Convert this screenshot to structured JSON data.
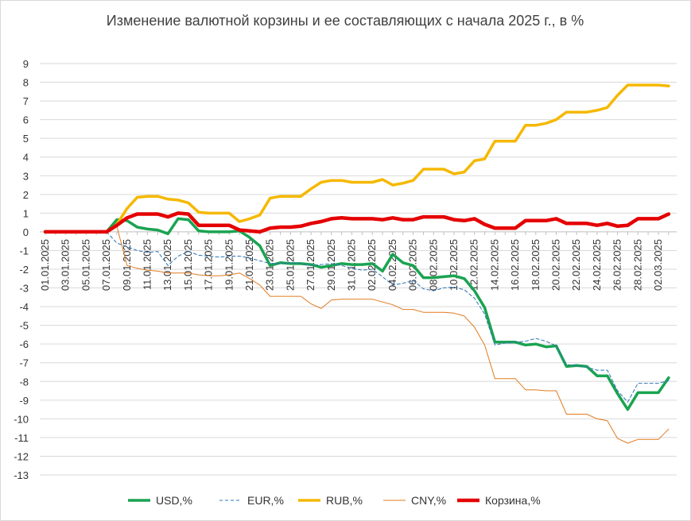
{
  "chart_data": {
    "type": "line",
    "title": "Изменение валютной корзины и ее составляющих с начала 2025 г., в %",
    "ylim": [
      -13,
      9
    ],
    "yticks": [
      9,
      8,
      7,
      6,
      5,
      4,
      3,
      2,
      1,
      0,
      -1,
      -2,
      -3,
      -4,
      -5,
      -6,
      -7,
      -8,
      -9,
      -10,
      -11,
      -12,
      -13
    ],
    "x_tick_labels": [
      "01.01.2025",
      "03.01.2025",
      "05.01.2025",
      "07.01.2025",
      "09.01.2025",
      "11.01.2025",
      "13.01.2025",
      "15.01.2025",
      "17.01.2025",
      "19.01.2025",
      "21.01.2025",
      "23.01.2025",
      "25.01.2025",
      "27.01.2025",
      "29.01.2025",
      "31.01.2025",
      "02.02.2025",
      "04.02.2025",
      "06.02.2025",
      "08.02.2025",
      "10.02.2025",
      "12.02.2025",
      "14.02.2025",
      "16.02.2025",
      "18.02.2025",
      "20.02.2025",
      "22.02.2025",
      "24.02.2025",
      "26.02.2025",
      "28.02.2025",
      "02.03.2025"
    ],
    "x": [
      "01.01.2025",
      "02.01.2025",
      "03.01.2025",
      "04.01.2025",
      "05.01.2025",
      "06.01.2025",
      "07.01.2025",
      "08.01.2025",
      "09.01.2025",
      "10.01.2025",
      "11.01.2025",
      "12.01.2025",
      "13.01.2025",
      "14.01.2025",
      "15.01.2025",
      "16.01.2025",
      "17.01.2025",
      "18.01.2025",
      "19.01.2025",
      "20.01.2025",
      "21.01.2025",
      "22.01.2025",
      "23.01.2025",
      "24.01.2025",
      "25.01.2025",
      "26.01.2025",
      "27.01.2025",
      "28.01.2025",
      "29.01.2025",
      "30.01.2025",
      "31.01.2025",
      "01.02.2025",
      "02.02.2025",
      "03.02.2025",
      "04.02.2025",
      "05.02.2025",
      "06.02.2025",
      "07.02.2025",
      "08.02.2025",
      "09.02.2025",
      "10.02.2025",
      "11.02.2025",
      "12.02.2025",
      "13.02.2025",
      "14.02.2025",
      "15.02.2025",
      "16.02.2025",
      "17.02.2025",
      "18.02.2025",
      "19.02.2025",
      "20.02.2025",
      "21.02.2025",
      "22.02.2025",
      "23.02.2025",
      "24.02.2025",
      "25.02.2025",
      "26.02.2025",
      "27.02.2025",
      "28.02.2025",
      "01.03.2025",
      "02.03.2025",
      "03.03.2025"
    ],
    "series": [
      {
        "name": "USD,%",
        "color": "#1aa351",
        "dash": false,
        "values": [
          0,
          0,
          0,
          0,
          0,
          0,
          0,
          0.65,
          0.6,
          0.25,
          0.15,
          0.1,
          -0.1,
          0.7,
          0.65,
          0.05,
          0,
          0,
          0,
          0.05,
          -0.3,
          -0.75,
          -1.8,
          -1.65,
          -1.7,
          -1.7,
          -1.75,
          -1.9,
          -1.8,
          -1.7,
          -1.75,
          -1.75,
          -1.7,
          -2.1,
          -1.2,
          -1.65,
          -1.8,
          -2.45,
          -2.45,
          -2.4,
          -2.35,
          -2.5,
          -3.15,
          -4.05,
          -5.9,
          -5.9,
          -5.9,
          -6.05,
          -6,
          -6.15,
          -6.1,
          -7.2,
          -7.15,
          -7.2,
          -7.7,
          -7.7,
          -8.65,
          -9.5,
          -8.6,
          -8.6,
          -8.6,
          -7.8
        ]
      },
      {
        "name": "EUR,%",
        "color": "#2e74b5",
        "dash": true,
        "values": [
          0,
          0,
          0,
          0,
          0,
          0,
          0,
          -0.6,
          -0.8,
          -1,
          -1.1,
          -1.05,
          -1.8,
          -1.3,
          -1.05,
          -1.25,
          -1.3,
          -1.35,
          -1.3,
          -1.3,
          -1.4,
          -1.55,
          -1.7,
          -1.7,
          -1.65,
          -1.7,
          -1.8,
          -1.75,
          -1.7,
          -1.8,
          -1.95,
          -2.05,
          -2,
          -2.4,
          -2.85,
          -2.75,
          -2.6,
          -3.05,
          -3.15,
          -3,
          -2.95,
          -3.1,
          -3.55,
          -4.4,
          -6.05,
          -5.95,
          -5.9,
          -5.85,
          -5.7,
          -5.85,
          -6.1,
          -7.1,
          -7.15,
          -7.25,
          -7.4,
          -7.4,
          -8.5,
          -9.1,
          -8.1,
          -8.1,
          -8.1,
          -7.95
        ]
      },
      {
        "name": "RUB,%",
        "color": "#f5b800",
        "dash": false,
        "values": [
          0,
          0,
          0,
          0,
          0,
          0,
          0,
          0.4,
          1.25,
          1.85,
          1.9,
          1.9,
          1.75,
          1.7,
          1.55,
          1.05,
          1,
          1,
          1,
          0.55,
          0.7,
          0.9,
          1.8,
          1.9,
          1.9,
          1.9,
          2.3,
          2.65,
          2.75,
          2.75,
          2.65,
          2.65,
          2.65,
          2.8,
          2.5,
          2.6,
          2.75,
          3.35,
          3.35,
          3.35,
          3.1,
          3.2,
          3.8,
          3.9,
          4.85,
          4.85,
          4.85,
          5.7,
          5.7,
          5.8,
          6,
          6.4,
          6.4,
          6.4,
          6.5,
          6.65,
          7.3,
          7.85,
          7.85,
          7.85,
          7.85,
          7.8
        ]
      },
      {
        "name": "CNY,%",
        "color": "#e07a1f",
        "dash": false,
        "values": [
          0,
          0,
          0,
          0,
          0,
          0,
          0,
          0.3,
          -1.8,
          -1.95,
          -2.05,
          -2.1,
          -2.2,
          -2.2,
          -2.2,
          -2.3,
          -2.35,
          -2.35,
          -2.3,
          -2.2,
          -2.5,
          -2.85,
          -3.45,
          -3.45,
          -3.45,
          -3.45,
          -3.85,
          -4.1,
          -3.65,
          -3.6,
          -3.6,
          -3.6,
          -3.6,
          -3.75,
          -3.9,
          -4.15,
          -4.15,
          -4.3,
          -4.3,
          -4.3,
          -4.35,
          -4.5,
          -5.1,
          -6.05,
          -7.85,
          -7.85,
          -7.85,
          -8.45,
          -8.45,
          -8.5,
          -8.5,
          -9.75,
          -9.75,
          -9.75,
          -10,
          -10.1,
          -11.05,
          -11.3,
          -11.1,
          -11.1,
          -11.1,
          -10.55
        ]
      },
      {
        "name": "Корзина,%",
        "color": "#e50000",
        "dash": false,
        "values": [
          0,
          0,
          0,
          0,
          0,
          0,
          0,
          0.35,
          0.75,
          0.95,
          0.95,
          0.95,
          0.8,
          1,
          0.95,
          0.35,
          0.35,
          0.35,
          0.35,
          0.1,
          0.05,
          0,
          0.2,
          0.25,
          0.25,
          0.3,
          0.45,
          0.55,
          0.7,
          0.75,
          0.7,
          0.7,
          0.7,
          0.65,
          0.75,
          0.65,
          0.65,
          0.8,
          0.8,
          0.8,
          0.65,
          0.6,
          0.7,
          0.4,
          0.2,
          0.2,
          0.2,
          0.6,
          0.6,
          0.6,
          0.7,
          0.45,
          0.45,
          0.45,
          0.35,
          0.45,
          0.3,
          0.35,
          0.7,
          0.7,
          0.7,
          0.95
        ]
      }
    ],
    "grid": true,
    "legend_position": "bottom"
  }
}
